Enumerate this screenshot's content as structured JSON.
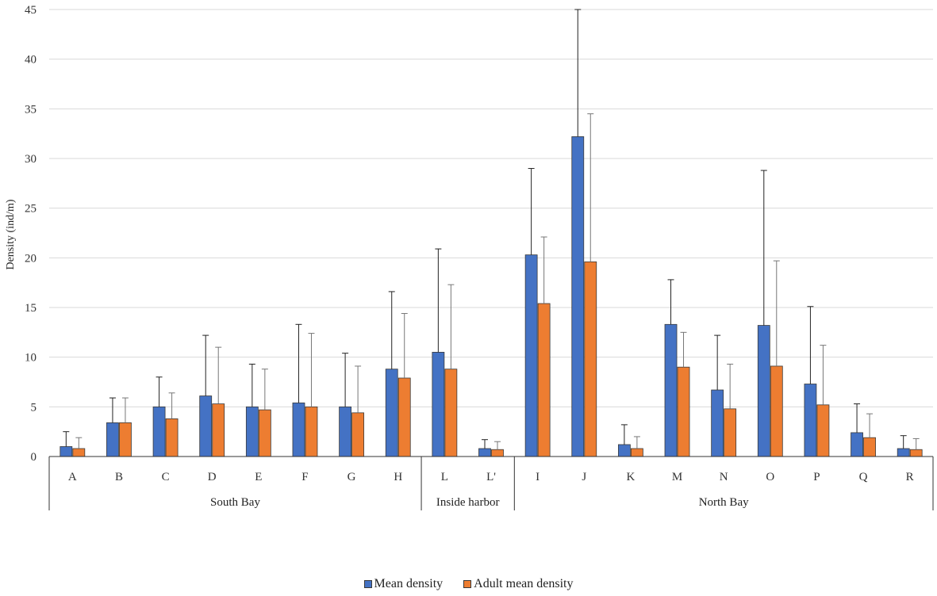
{
  "chart_data": {
    "type": "bar",
    "ylabel": "Density  (ind/m)",
    "ylim": [
      0,
      45
    ],
    "yticks": [
      0,
      5,
      10,
      15,
      20,
      25,
      30,
      35,
      40,
      45
    ],
    "grid": true,
    "categories": [
      "A",
      "B",
      "C",
      "D",
      "E",
      "F",
      "G",
      "H",
      "L",
      "L'",
      "I",
      "J",
      "K",
      "M",
      "N",
      "O",
      "P",
      "Q",
      "R"
    ],
    "groups": [
      {
        "label": "South Bay",
        "count": 8
      },
      {
        "label": "Inside harbor",
        "count": 2
      },
      {
        "label": "North Bay",
        "count": 9
      }
    ],
    "series": [
      {
        "name": "Mean density",
        "color": "#4472C4",
        "values": [
          1.0,
          3.4,
          5.0,
          6.1,
          5.0,
          5.4,
          5.0,
          8.8,
          10.5,
          0.8,
          20.3,
          32.2,
          1.2,
          13.3,
          6.7,
          13.2,
          7.3,
          2.4,
          0.8
        ],
        "errors": [
          1.5,
          2.5,
          3.0,
          6.1,
          4.3,
          7.9,
          5.4,
          7.8,
          10.4,
          0.9,
          8.7,
          12.8,
          2.0,
          4.5,
          5.5,
          15.6,
          7.8,
          2.9,
          1.3
        ]
      },
      {
        "name": "Adult mean density",
        "color": "#ED7D31",
        "values": [
          0.8,
          3.4,
          3.8,
          5.3,
          4.7,
          5.0,
          4.4,
          7.9,
          8.8,
          0.7,
          15.4,
          19.6,
          0.8,
          9.0,
          4.8,
          9.1,
          5.2,
          1.9,
          0.7
        ],
        "errors": [
          1.1,
          2.5,
          2.6,
          5.7,
          4.1,
          7.4,
          4.7,
          6.5,
          8.5,
          0.8,
          6.7,
          14.9,
          1.2,
          3.5,
          4.5,
          10.6,
          6.0,
          2.4,
          1.1
        ]
      }
    ]
  }
}
